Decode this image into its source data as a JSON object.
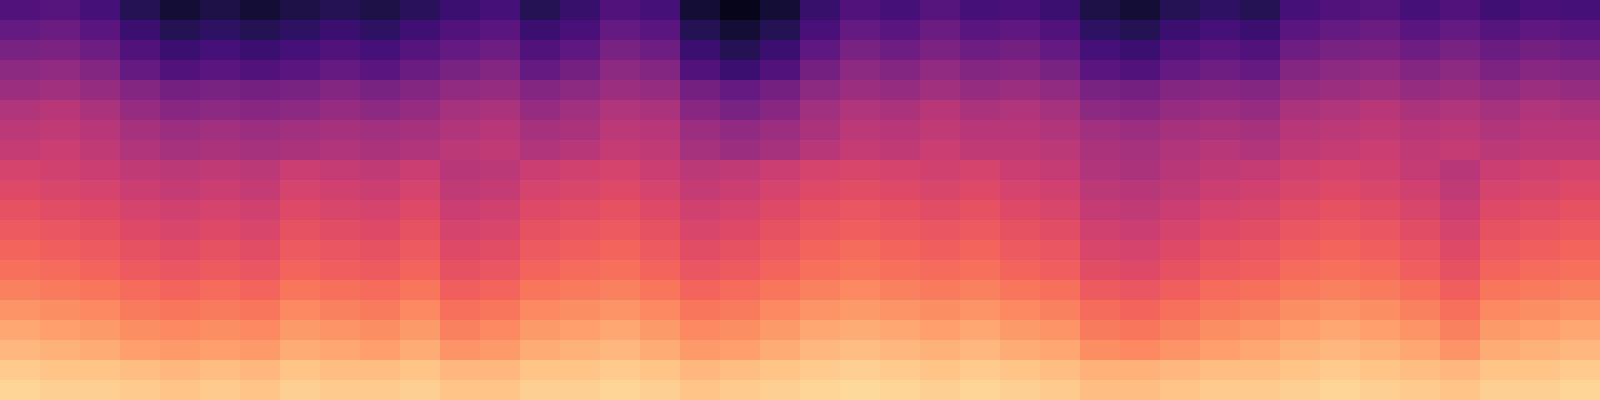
{
  "chart_data": {
    "type": "heatmap",
    "color": "magma",
    "color_range": [
      -80,
      0
    ],
    "tick_labels": false,
    "cells": [
      [
        -60,
        -59,
        -62,
        -68,
        -72,
        -70,
        -72,
        -70,
        -68,
        -70,
        -67,
        -64,
        -62,
        -68,
        -65,
        -60,
        -62,
        -72,
        -76,
        -72,
        -65,
        -60,
        -62,
        -59,
        -62,
        -61,
        -64,
        -70,
        -72,
        -68,
        -66,
        -68,
        -62,
        -60,
        -59,
        -62,
        -60,
        -63,
        -61,
        -62
      ],
      [
        -56,
        -55,
        -58,
        -64,
        -68,
        -66,
        -68,
        -66,
        -64,
        -66,
        -63,
        -60,
        -58,
        -64,
        -61,
        -56,
        -58,
        -68,
        -72,
        -68,
        -61,
        -56,
        -58,
        -55,
        -58,
        -57,
        -60,
        -66,
        -68,
        -64,
        -62,
        -64,
        -58,
        -56,
        -55,
        -58,
        -56,
        -59,
        -57,
        -58
      ],
      [
        -52,
        -51,
        -54,
        -60,
        -64,
        -62,
        -64,
        -62,
        -60,
        -62,
        -59,
        -56,
        -54,
        -60,
        -57,
        -52,
        -54,
        -64,
        -68,
        -64,
        -57,
        -52,
        -54,
        -51,
        -54,
        -53,
        -56,
        -62,
        -64,
        -60,
        -58,
        -60,
        -54,
        -52,
        -51,
        -54,
        -52,
        -55,
        -53,
        -54
      ],
      [
        -48,
        -47,
        -50,
        -56,
        -60,
        -58,
        -60,
        -58,
        -56,
        -58,
        -55,
        -52,
        -50,
        -56,
        -53,
        -48,
        -50,
        -60,
        -64,
        -60,
        -53,
        -48,
        -50,
        -47,
        -50,
        -49,
        -52,
        -58,
        -60,
        -56,
        -54,
        -56,
        -50,
        -48,
        -47,
        -50,
        -48,
        -51,
        -49,
        -50
      ],
      [
        -45,
        -44,
        -46,
        -50,
        -53,
        -52,
        -53,
        -52,
        -50,
        -52,
        -50,
        -47,
        -46,
        -50,
        -48,
        -45,
        -46,
        -53,
        -56,
        -53,
        -48,
        -45,
        -46,
        -44,
        -46,
        -45,
        -47,
        -52,
        -53,
        -50,
        -49,
        -50,
        -46,
        -45,
        -44,
        -46,
        -45,
        -47,
        -45,
        -46
      ],
      [
        -41,
        -40,
        -42,
        -46,
        -49,
        -48,
        -49,
        -48,
        -46,
        -48,
        -46,
        -43,
        -42,
        -46,
        -44,
        -41,
        -42,
        -49,
        -52,
        -49,
        -44,
        -41,
        -42,
        -40,
        -42,
        -41,
        -43,
        -48,
        -49,
        -46,
        -45,
        -46,
        -42,
        -41,
        -40,
        -42,
        -41,
        -43,
        -41,
        -42
      ],
      [
        -39,
        -38,
        -40,
        -43,
        -45,
        -44,
        -45,
        -44,
        -43,
        -44,
        -43,
        -41,
        -40,
        -43,
        -42,
        -39,
        -40,
        -45,
        -47,
        -45,
        -42,
        -39,
        -40,
        -38,
        -40,
        -40,
        -41,
        -44,
        -45,
        -43,
        -42,
        -43,
        -40,
        -39,
        -38,
        -40,
        -39,
        -41,
        -40,
        -40
      ],
      [
        -37,
        -36,
        -38,
        -41,
        -43,
        -42,
        -43,
        -42,
        -41,
        -42,
        -41,
        -39,
        -38,
        -41,
        -40,
        -37,
        -38,
        -43,
        -45,
        -43,
        -40,
        -37,
        -38,
        -36,
        -38,
        -38,
        -39,
        -42,
        -43,
        -41,
        -40,
        -41,
        -38,
        -37,
        -36,
        -38,
        -37,
        -39,
        -38,
        -38
      ],
      [
        -34,
        -35,
        -36,
        -38,
        -39,
        -38,
        -39,
        -36,
        -37,
        -38,
        -36,
        -40,
        -39,
        -36,
        -35,
        -34,
        -36,
        -39,
        -38,
        -36,
        -34,
        -33,
        -34,
        -35,
        -34,
        -36,
        -37,
        -41,
        -42,
        -40,
        -38,
        -37,
        -35,
        -34,
        -35,
        -37,
        -40,
        -36,
        -35,
        -34
      ],
      [
        -32,
        -33,
        -34,
        -36,
        -37,
        -36,
        -37,
        -34,
        -35,
        -36,
        -34,
        -38,
        -37,
        -34,
        -33,
        -32,
        -34,
        -37,
        -36,
        -34,
        -32,
        -31,
        -32,
        -33,
        -32,
        -34,
        -35,
        -39,
        -40,
        -38,
        -36,
        -35,
        -33,
        -32,
        -33,
        -35,
        -38,
        -34,
        -33,
        -32
      ],
      [
        -30,
        -31,
        -32,
        -34,
        -35,
        -34,
        -35,
        -32,
        -33,
        -34,
        -32,
        -36,
        -35,
        -32,
        -31,
        -30,
        -32,
        -35,
        -34,
        -32,
        -30,
        -29,
        -30,
        -31,
        -30,
        -32,
        -33,
        -37,
        -38,
        -36,
        -34,
        -33,
        -31,
        -30,
        -31,
        -33,
        -36,
        -32,
        -31,
        -30
      ],
      [
        -28,
        -29,
        -30,
        -32,
        -33,
        -32,
        -33,
        -30,
        -31,
        -32,
        -30,
        -34,
        -33,
        -30,
        -29,
        -28,
        -30,
        -33,
        -32,
        -30,
        -28,
        -27,
        -28,
        -29,
        -28,
        -30,
        -31,
        -35,
        -36,
        -34,
        -32,
        -31,
        -29,
        -28,
        -29,
        -31,
        -34,
        -30,
        -29,
        -28
      ],
      [
        -26,
        -27,
        -28,
        -30,
        -31,
        -30,
        -31,
        -28,
        -29,
        -30,
        -28,
        -32,
        -31,
        -28,
        -27,
        -26,
        -28,
        -31,
        -30,
        -28,
        -26,
        -25,
        -26,
        -27,
        -26,
        -28,
        -29,
        -33,
        -34,
        -32,
        -30,
        -29,
        -27,
        -26,
        -27,
        -29,
        -32,
        -28,
        -27,
        -26
      ],
      [
        -24,
        -25,
        -26,
        -28,
        -29,
        -28,
        -29,
        -26,
        -27,
        -28,
        -26,
        -30,
        -29,
        -26,
        -25,
        -24,
        -26,
        -29,
        -28,
        -26,
        -24,
        -23,
        -24,
        -25,
        -24,
        -26,
        -27,
        -31,
        -32,
        -30,
        -28,
        -27,
        -25,
        -24,
        -25,
        -27,
        -30,
        -26,
        -25,
        -24
      ],
      [
        -21,
        -22,
        -23,
        -25,
        -26,
        -25,
        -26,
        -23,
        -24,
        -25,
        -23,
        -27,
        -26,
        -23,
        -22,
        -21,
        -23,
        -26,
        -25,
        -23,
        -21,
        -20,
        -21,
        -22,
        -21,
        -23,
        -24,
        -28,
        -29,
        -27,
        -25,
        -24,
        -22,
        -21,
        -22,
        -24,
        -27,
        -23,
        -22,
        -21
      ],
      [
        -18,
        -19,
        -20,
        -22,
        -23,
        -22,
        -23,
        -20,
        -21,
        -22,
        -20,
        -24,
        -23,
        -20,
        -19,
        -18,
        -20,
        -23,
        -22,
        -20,
        -18,
        -17,
        -18,
        -19,
        -18,
        -20,
        -21,
        -25,
        -26,
        -24,
        -22,
        -21,
        -19,
        -18,
        -19,
        -21,
        -24,
        -20,
        -19,
        -18
      ],
      [
        -15,
        -16,
        -17,
        -19,
        -20,
        -19,
        -20,
        -17,
        -18,
        -19,
        -17,
        -21,
        -20,
        -17,
        -16,
        -15,
        -17,
        -20,
        -19,
        -17,
        -15,
        -14,
        -15,
        -16,
        -15,
        -17,
        -18,
        -22,
        -23,
        -21,
        -19,
        -18,
        -16,
        -15,
        -16,
        -18,
        -21,
        -17,
        -16,
        -15
      ],
      [
        -12,
        -13,
        -14,
        -16,
        -17,
        -16,
        -17,
        -14,
        -15,
        -16,
        -14,
        -18,
        -17,
        -14,
        -13,
        -12,
        -14,
        -17,
        -16,
        -14,
        -12,
        -11,
        -12,
        -13,
        -12,
        -14,
        -15,
        -19,
        -20,
        -18,
        -16,
        -15,
        -13,
        -12,
        -13,
        -15,
        -18,
        -14,
        -13,
        -12
      ],
      [
        -9,
        -10,
        -10,
        -11,
        -12,
        -11,
        -12,
        -10,
        -11,
        -11,
        -10,
        -12,
        -12,
        -10,
        -10,
        -9,
        -10,
        -12,
        -11,
        -10,
        -9,
        -8,
        -9,
        -10,
        -9,
        -10,
        -11,
        -13,
        -13,
        -12,
        -11,
        -11,
        -10,
        -9,
        -10,
        -11,
        -12,
        -10,
        -10,
        -9
      ],
      [
        -7,
        -8,
        -8,
        -9,
        -10,
        -9,
        -10,
        -8,
        -9,
        -9,
        -8,
        -10,
        -10,
        -8,
        -8,
        -7,
        -8,
        -10,
        -9,
        -8,
        -7,
        -6,
        -7,
        -8,
        -7,
        -8,
        -9,
        -11,
        -11,
        -10,
        -9,
        -9,
        -8,
        -7,
        -8,
        -9,
        -10,
        -8,
        -8,
        -7
      ]
    ]
  }
}
